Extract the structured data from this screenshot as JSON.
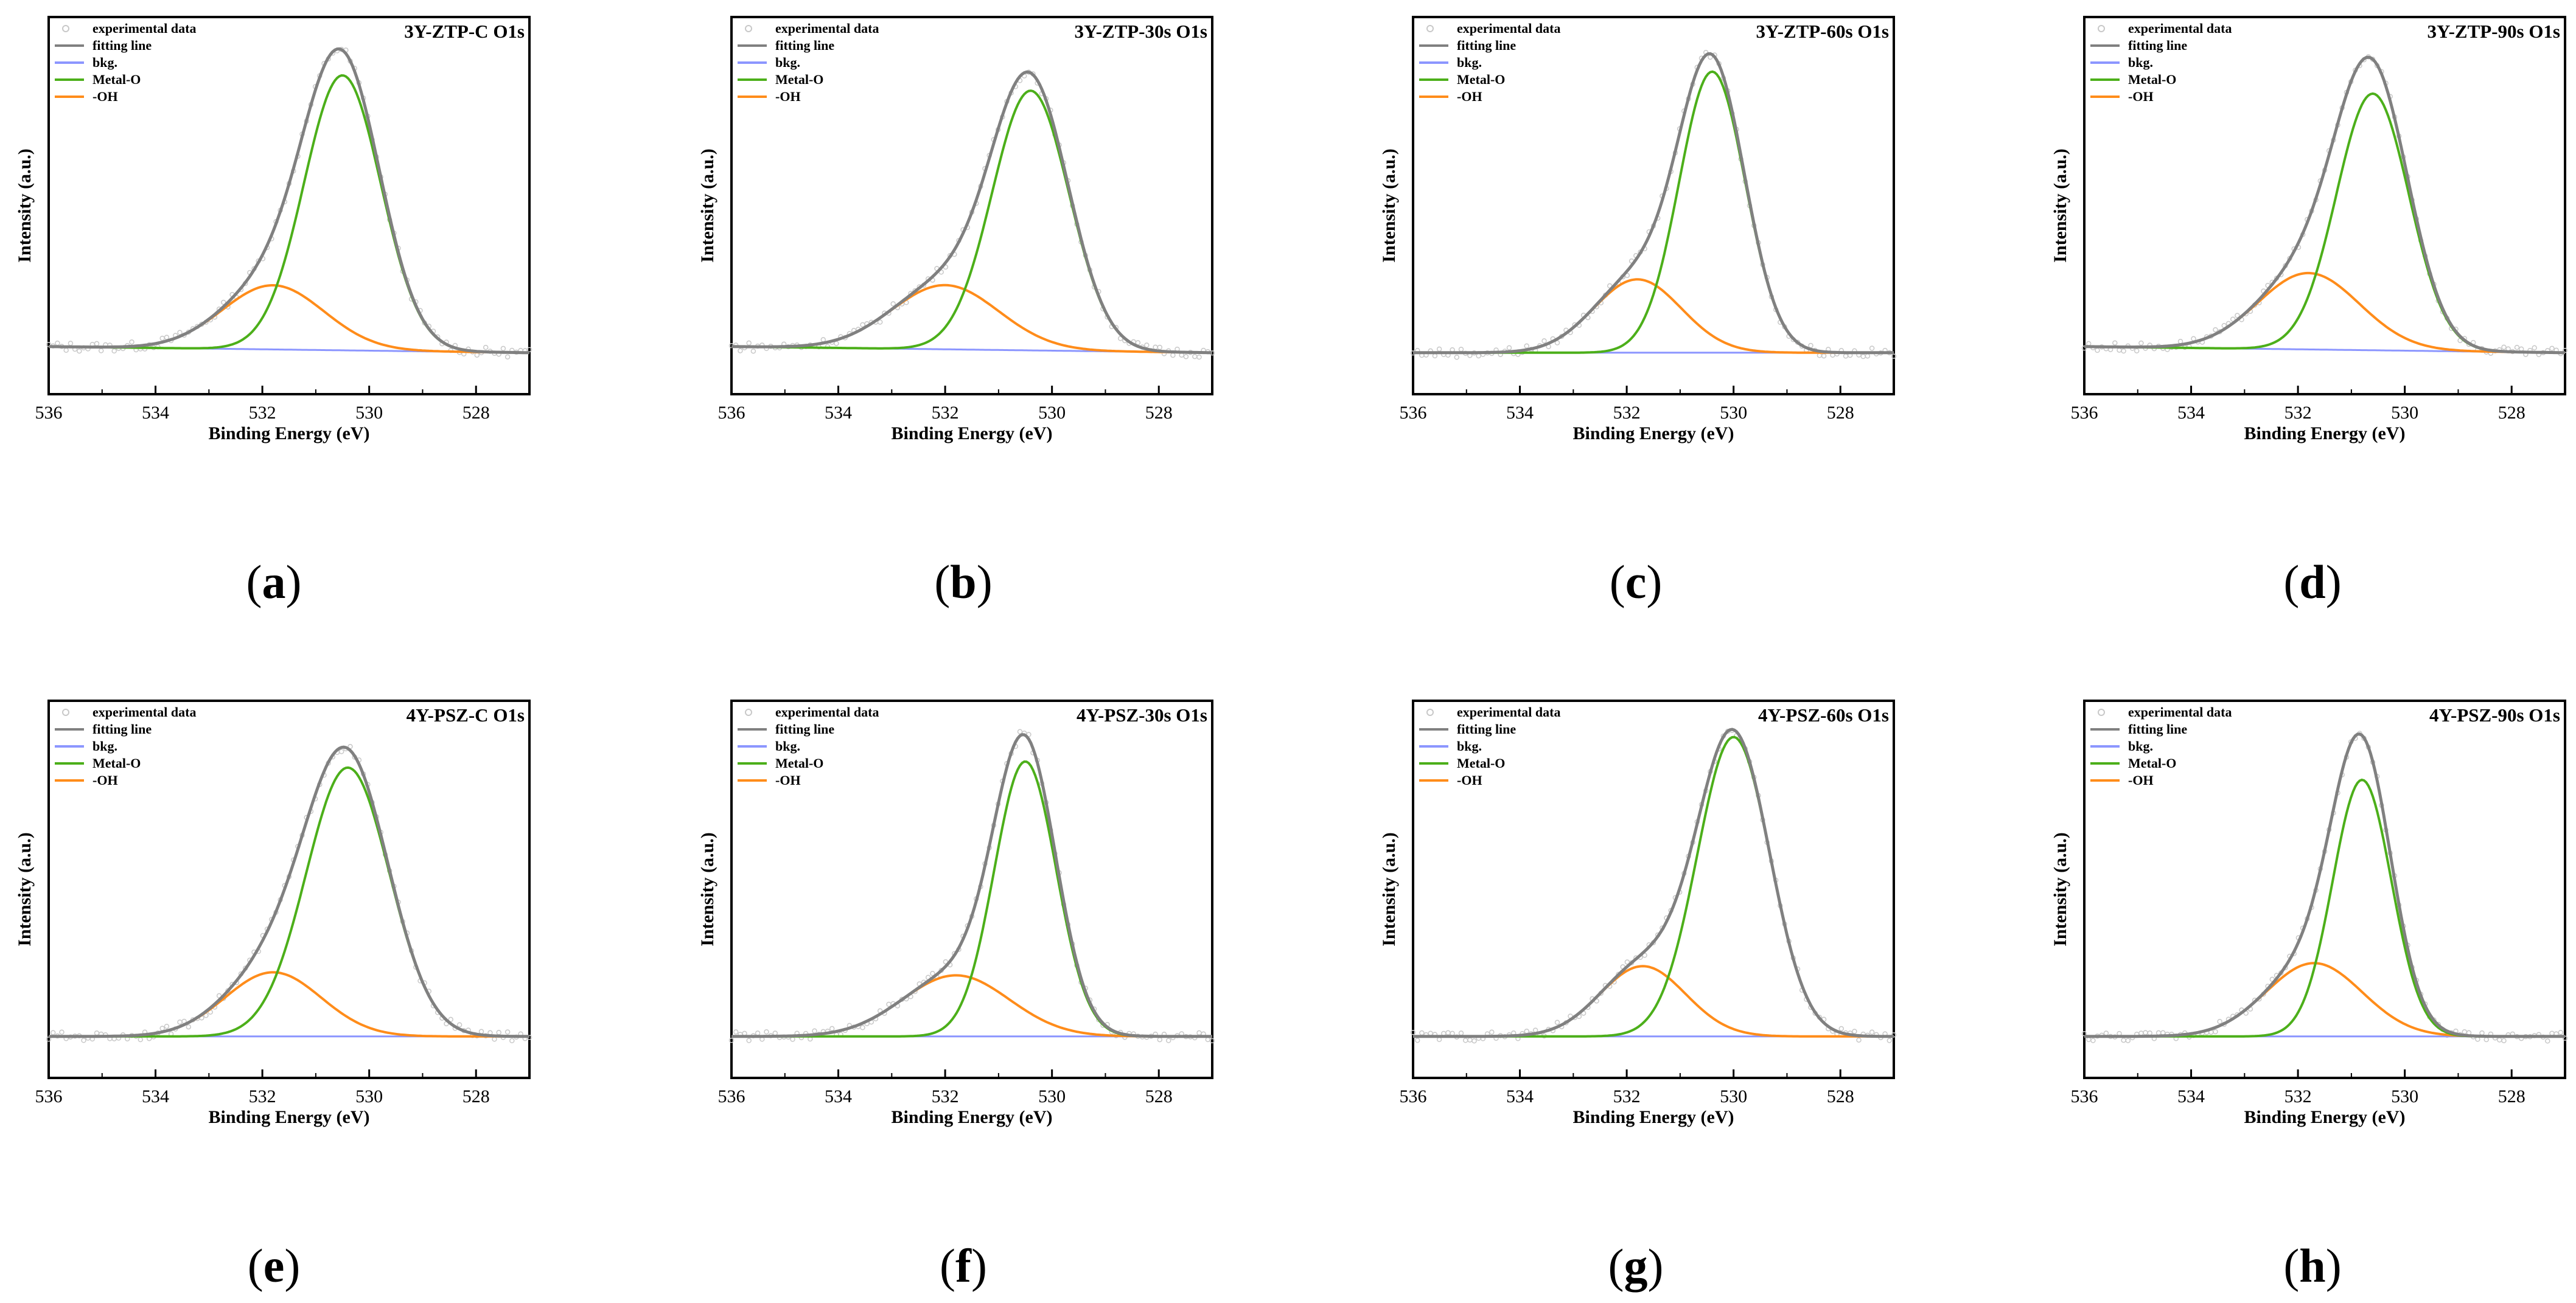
{
  "figure": {
    "panel_labels": [
      "a",
      "b",
      "c",
      "d",
      "e",
      "f",
      "g",
      "h"
    ]
  },
  "legend_entries": [
    {
      "label": "experimental data",
      "color": "#c8c8c8",
      "kind": "marker"
    },
    {
      "label": "fitting line",
      "color": "#808080",
      "kind": "line"
    },
    {
      "label": "bkg.",
      "color": "#8c96ff",
      "kind": "line"
    },
    {
      "label": "Metal-O",
      "color": "#4caf1a",
      "kind": "line"
    },
    {
      "label": "-OH",
      "color": "#ff8c1a",
      "kind": "line"
    }
  ],
  "chart_data": [
    {
      "type": "line",
      "title": "3Y-ZTP-C O1s",
      "xlabel": "Binding Energy (eV)",
      "ylabel": "Intensity (a.u.)",
      "xlim": [
        536,
        527
      ],
      "xticks": [
        536,
        534,
        532,
        530,
        528
      ],
      "series": [
        {
          "name": "Metal-O",
          "center": 530.5,
          "height": 0.9,
          "width": 0.72
        },
        {
          "name": "-OH",
          "center": 531.8,
          "height": 0.21,
          "width": 0.95
        },
        {
          "name": "bkg.",
          "start": 0.02,
          "end": 0.0
        }
      ]
    },
    {
      "type": "line",
      "title": "3Y-ZTP-30s O1s",
      "xlabel": "Binding Energy (eV)",
      "ylabel": "Intensity (a.u.)",
      "xlim": [
        536,
        527
      ],
      "xticks": [
        536,
        534,
        532,
        530,
        528
      ],
      "series": [
        {
          "name": "Metal-O",
          "center": 530.4,
          "height": 0.85,
          "width": 0.72
        },
        {
          "name": "-OH",
          "center": 532.0,
          "height": 0.21,
          "width": 1.0
        },
        {
          "name": "bkg.",
          "start": 0.02,
          "end": 0.0
        }
      ]
    },
    {
      "type": "line",
      "title": "3Y-ZTP-60s O1s",
      "xlabel": "Binding Energy (eV)",
      "ylabel": "Intensity (a.u.)",
      "xlim": [
        536,
        527
      ],
      "xticks": [
        536,
        534,
        532,
        530,
        528
      ],
      "series": [
        {
          "name": "Metal-O",
          "center": 530.4,
          "height": 0.92,
          "width": 0.62
        },
        {
          "name": "-OH",
          "center": 531.8,
          "height": 0.24,
          "width": 0.82
        },
        {
          "name": "bkg.",
          "start": 0.0,
          "end": 0.0
        }
      ]
    },
    {
      "type": "line",
      "title": "3Y-ZTP-90s O1s",
      "xlabel": "Binding Energy (eV)",
      "ylabel": "Intensity (a.u.)",
      "xlim": [
        536,
        527
      ],
      "xticks": [
        536,
        534,
        532,
        530,
        528
      ],
      "series": [
        {
          "name": "Metal-O",
          "center": 530.6,
          "height": 0.84,
          "width": 0.68
        },
        {
          "name": "-OH",
          "center": 531.8,
          "height": 0.25,
          "width": 0.95
        },
        {
          "name": "bkg.",
          "start": 0.02,
          "end": 0.0
        }
      ]
    },
    {
      "type": "line",
      "title": "4Y-PSZ-C O1s",
      "xlabel": "Binding Energy (eV)",
      "ylabel": "Intensity (a.u.)",
      "xlim": [
        536,
        527
      ],
      "xticks": [
        536,
        534,
        532,
        530,
        528
      ],
      "series": [
        {
          "name": "Metal-O",
          "center": 530.4,
          "height": 0.88,
          "width": 0.78
        },
        {
          "name": "-OH",
          "center": 531.8,
          "height": 0.21,
          "width": 0.9
        },
        {
          "name": "bkg.",
          "start": 0.0,
          "end": 0.0
        }
      ]
    },
    {
      "type": "line",
      "title": "4Y-PSZ-30s O1s",
      "xlabel": "Binding Energy (eV)",
      "ylabel": "Intensity (a.u.)",
      "xlim": [
        536,
        527
      ],
      "xticks": [
        536,
        534,
        532,
        530,
        528
      ],
      "series": [
        {
          "name": "Metal-O",
          "center": 530.5,
          "height": 0.9,
          "width": 0.58
        },
        {
          "name": "-OH",
          "center": 531.8,
          "height": 0.2,
          "width": 1.0
        },
        {
          "name": "bkg.",
          "start": 0.0,
          "end": 0.0
        }
      ]
    },
    {
      "type": "line",
      "title": "4Y-PSZ-60s O1s",
      "xlabel": "Binding Energy (eV)",
      "ylabel": "Intensity (a.u.)",
      "xlim": [
        536,
        527
      ],
      "xticks": [
        536,
        534,
        532,
        530,
        528
      ],
      "series": [
        {
          "name": "Metal-O",
          "center": 530.0,
          "height": 0.98,
          "width": 0.68
        },
        {
          "name": "-OH",
          "center": 531.7,
          "height": 0.23,
          "width": 0.8
        },
        {
          "name": "bkg.",
          "start": 0.0,
          "end": 0.0
        }
      ]
    },
    {
      "type": "line",
      "title": "4Y-PSZ-90s O1s",
      "xlabel": "Binding Energy (eV)",
      "ylabel": "Intensity (a.u.)",
      "xlim": [
        536,
        527
      ],
      "xticks": [
        536,
        534,
        532,
        530,
        528
      ],
      "series": [
        {
          "name": "Metal-O",
          "center": 530.8,
          "height": 0.84,
          "width": 0.55
        },
        {
          "name": "-OH",
          "center": 531.7,
          "height": 0.24,
          "width": 0.9
        },
        {
          "name": "bkg.",
          "start": 0.0,
          "end": 0.0
        }
      ]
    }
  ]
}
